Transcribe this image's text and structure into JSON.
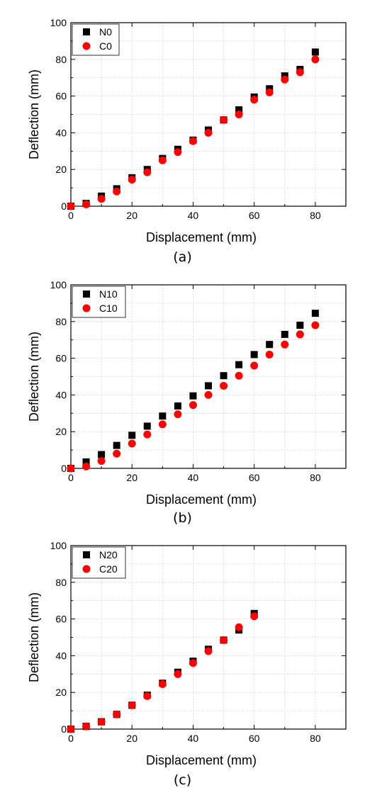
{
  "chart_data": [
    {
      "type": "scatter",
      "caption": "(a)",
      "xlabel": "Displacement (mm)",
      "ylabel": "Deflection (mm)",
      "xlim": [
        0,
        90
      ],
      "ylim": [
        0,
        100
      ],
      "x_ticks": [
        "0",
        "20",
        "40",
        "60",
        "80"
      ],
      "y_ticks": [
        "0",
        "20",
        "40",
        "60",
        "80",
        "100"
      ],
      "grid": true,
      "legend_position": "top-left",
      "series": [
        {
          "name": "N0",
          "marker": "square",
          "color": "#000000",
          "x": [
            0,
            5,
            10,
            15,
            20,
            25,
            30,
            35,
            40,
            45,
            50,
            55,
            60,
            65,
            70,
            75,
            80
          ],
          "y": [
            0,
            1.5,
            5.5,
            9.5,
            15.5,
            20,
            26,
            31,
            36,
            41.5,
            47,
            52.5,
            59.5,
            64,
            71,
            74.5,
            84
          ]
        },
        {
          "name": "C0",
          "marker": "circle",
          "color": "#ff0000",
          "x": [
            0,
            5,
            10,
            15,
            20,
            25,
            30,
            35,
            40,
            45,
            50,
            55,
            60,
            65,
            70,
            75,
            80
          ],
          "y": [
            0,
            1,
            4,
            8,
            14.5,
            18.5,
            25,
            29.5,
            35.5,
            40,
            47,
            50,
            58,
            62,
            69,
            73,
            80
          ]
        }
      ]
    },
    {
      "type": "scatter",
      "caption": "(b)",
      "xlabel": "Displacement (mm)",
      "ylabel": "Deflection (mm)",
      "xlim": [
        0,
        90
      ],
      "ylim": [
        0,
        100
      ],
      "x_ticks": [
        "0",
        "20",
        "40",
        "60",
        "80"
      ],
      "y_ticks": [
        "0",
        "20",
        "40",
        "60",
        "80",
        "100"
      ],
      "grid": true,
      "legend_position": "top-left",
      "series": [
        {
          "name": "N10",
          "marker": "square",
          "color": "#000000",
          "x": [
            0,
            5,
            10,
            15,
            20,
            25,
            30,
            35,
            40,
            45,
            50,
            55,
            60,
            65,
            70,
            75,
            80
          ],
          "y": [
            0,
            3.5,
            7.5,
            12.5,
            18,
            23,
            28.5,
            34,
            39.5,
            45,
            50.5,
            56.5,
            62,
            67.5,
            73,
            78,
            84.5
          ]
        },
        {
          "name": "C10",
          "marker": "circle",
          "color": "#ff0000",
          "x": [
            0,
            5,
            10,
            15,
            20,
            25,
            30,
            35,
            40,
            45,
            50,
            55,
            60,
            65,
            70,
            75,
            80
          ],
          "y": [
            0,
            1,
            4,
            8,
            13.5,
            18.5,
            24,
            29.5,
            34.5,
            40,
            45,
            50.5,
            56,
            62,
            67.5,
            73,
            78
          ]
        }
      ]
    },
    {
      "type": "scatter",
      "caption": "(c)",
      "xlabel": "Displacement (mm)",
      "ylabel": "Deflection (mm)",
      "xlim": [
        0,
        90
      ],
      "ylim": [
        0,
        100
      ],
      "x_ticks": [
        "0",
        "20",
        "40",
        "60",
        "80"
      ],
      "y_ticks": [
        "0",
        "20",
        "40",
        "60",
        "80",
        "100"
      ],
      "grid": true,
      "legend_position": "top-left",
      "series": [
        {
          "name": "N20",
          "marker": "square",
          "color": "#000000",
          "x": [
            0,
            5,
            10,
            15,
            20,
            25,
            30,
            35,
            40,
            45,
            50,
            55,
            60
          ],
          "y": [
            0,
            1.5,
            4,
            8,
            13,
            18.5,
            25,
            31,
            37,
            43.5,
            48.5,
            54,
            63
          ]
        },
        {
          "name": "C20",
          "marker": "circle",
          "color": "#ff0000",
          "x": [
            0,
            5,
            10,
            15,
            20,
            25,
            30,
            35,
            40,
            45,
            50,
            55,
            60
          ],
          "y": [
            0,
            1.5,
            4,
            8,
            13,
            18,
            24.5,
            30,
            36,
            42.5,
            48.5,
            55.5,
            61.5
          ]
        }
      ]
    }
  ]
}
